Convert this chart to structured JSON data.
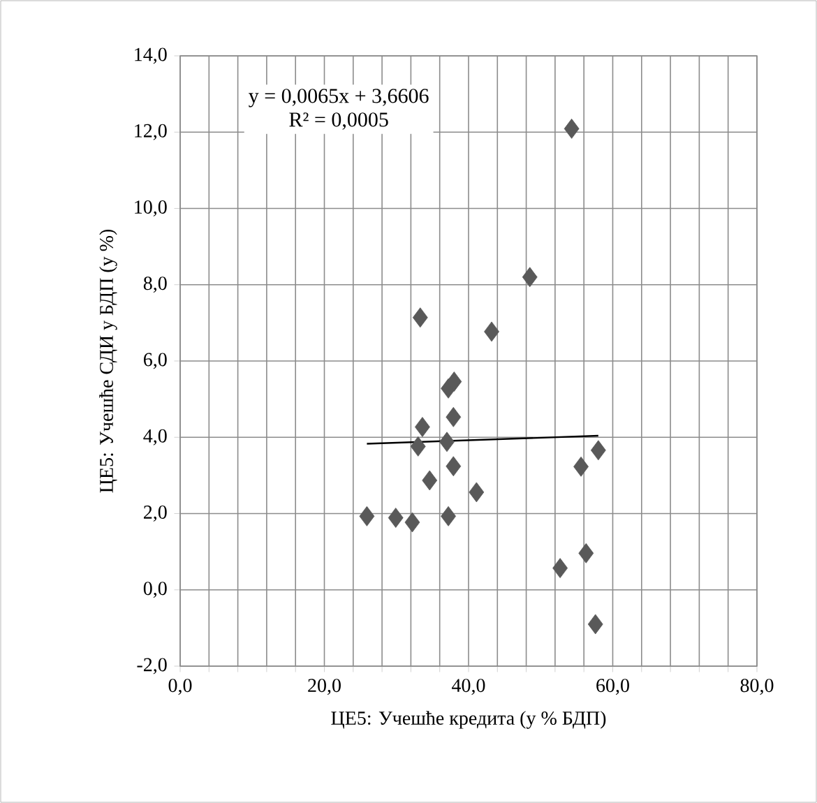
{
  "chart_data": {
    "type": "scatter",
    "xlabel": "ЦЕ5: Учешће кредита (у % БДП)",
    "ylabel": "ЦЕ5: Учешће СДИ у БДП (у %)",
    "annotations": [
      "y = 0,0065x + 3,6606",
      "R² = 0,0005"
    ],
    "series": [
      {
        "color": "#595959",
        "marker": "diamond",
        "x": [
          25.9,
          29.9,
          32.2,
          33.3,
          33.6,
          33.0,
          34.6,
          37.2,
          37.0,
          37.2,
          38.0,
          37.9,
          37.9,
          41.1,
          43.2,
          48.5,
          54.3,
          52.7,
          55.6,
          56.3,
          57.6,
          58.0
        ],
        "values": [
          1.93,
          1.89,
          1.77,
          7.14,
          4.27,
          3.76,
          2.87,
          1.93,
          3.88,
          5.28,
          5.46,
          4.53,
          3.24,
          2.56,
          6.77,
          8.2,
          12.09,
          0.57,
          3.23,
          0.96,
          -0.9,
          3.66
        ]
      },
      {
        "type": "line",
        "color": "#000000",
        "marker": "none",
        "x": [
          25.9,
          58.0
        ],
        "values": [
          3.83,
          4.04
        ]
      }
    ],
    "xlim": [
      0,
      80
    ],
    "ylim": [
      -2,
      14
    ],
    "xticks": [
      {
        "value": 0,
        "label": "0,0"
      },
      {
        "value": 4,
        "label": null
      },
      {
        "value": 8,
        "label": null
      },
      {
        "value": 12,
        "label": null
      },
      {
        "value": 16,
        "label": null
      },
      {
        "value": 20,
        "label": "20,0"
      },
      {
        "value": 24,
        "label": null
      },
      {
        "value": 28,
        "label": null
      },
      {
        "value": 32,
        "label": null
      },
      {
        "value": 36,
        "label": null
      },
      {
        "value": 40,
        "label": "40,0"
      },
      {
        "value": 44,
        "label": null
      },
      {
        "value": 48,
        "label": null
      },
      {
        "value": 52,
        "label": null
      },
      {
        "value": 56,
        "label": null
      },
      {
        "value": 60,
        "label": "60,0"
      },
      {
        "value": 64,
        "label": null
      },
      {
        "value": 68,
        "label": null
      },
      {
        "value": 72,
        "label": null
      },
      {
        "value": 76,
        "label": null
      },
      {
        "value": 80,
        "label": "80,0"
      }
    ],
    "yticks": [
      {
        "value": -2,
        "label": "-2,0"
      },
      {
        "value": 0,
        "label": "0,0"
      },
      {
        "value": 2,
        "label": "2,0"
      },
      {
        "value": 4,
        "label": "4,0"
      },
      {
        "value": 6,
        "label": "6,0"
      },
      {
        "value": 8,
        "label": "8,0"
      },
      {
        "value": 10,
        "label": "10,0"
      },
      {
        "value": 12,
        "label": "12,0"
      },
      {
        "value": 14,
        "label": "14,0"
      }
    ],
    "grid": true
  }
}
